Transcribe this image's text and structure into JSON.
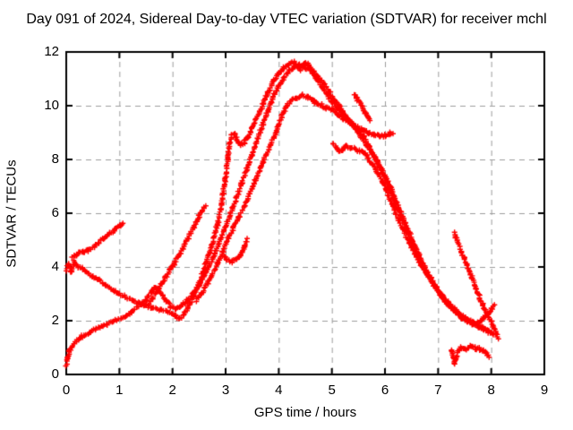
{
  "chart_data": {
    "type": "scatter",
    "title": "Day 091 of 2024, Sidereal Day-to-day VTEC variation (SDTVAR) for receiver mchl",
    "xlabel": "GPS time / hours",
    "ylabel": "SDTVAR / TECUs",
    "xlim": [
      0,
      9
    ],
    "ylim": [
      0,
      12
    ],
    "xticks": [
      0,
      1,
      2,
      3,
      4,
      5,
      6,
      7,
      8,
      9
    ],
    "yticks": [
      0,
      2,
      4,
      6,
      8,
      10,
      12
    ],
    "grid": true,
    "legend_position": "none",
    "marker": "plus",
    "colors": {
      "data": "#ff0000",
      "grid": "#9c9c9c",
      "axis": "#000000",
      "text": "#000000",
      "background": "#ffffff"
    },
    "series": [
      {
        "name": "segment-1",
        "points": [
          [
            0,
            3.9
          ],
          [
            0.04,
            4.15
          ],
          [
            0.09,
            3.8
          ],
          [
            0.15,
            4.2
          ],
          [
            0.22,
            4.0
          ],
          [
            0.3,
            3.95
          ],
          [
            0.38,
            3.8
          ],
          [
            0.5,
            3.65
          ],
          [
            0.62,
            3.5
          ],
          [
            0.75,
            3.3
          ],
          [
            0.88,
            3.15
          ],
          [
            1.0,
            3.0
          ],
          [
            1.12,
            2.88
          ],
          [
            1.28,
            2.72
          ],
          [
            1.45,
            2.6
          ],
          [
            1.62,
            2.48
          ],
          [
            1.8,
            2.4
          ],
          [
            1.95,
            2.3
          ],
          [
            2.05,
            2.18
          ],
          [
            2.12,
            2.08
          ],
          [
            2.2,
            2.18
          ],
          [
            2.3,
            2.5
          ],
          [
            2.4,
            2.92
          ],
          [
            2.5,
            3.4
          ],
          [
            2.6,
            3.95
          ],
          [
            2.7,
            4.55
          ],
          [
            2.78,
            5.05
          ],
          [
            2.86,
            5.7
          ],
          [
            2.93,
            6.4
          ],
          [
            2.99,
            7.2
          ],
          [
            3.04,
            8.0
          ],
          [
            3.08,
            8.6
          ],
          [
            3.12,
            8.88
          ],
          [
            3.17,
            8.95
          ],
          [
            3.22,
            8.7
          ],
          [
            3.28,
            8.55
          ],
          [
            3.35,
            8.62
          ],
          [
            3.42,
            8.85
          ],
          [
            3.5,
            9.15
          ],
          [
            3.6,
            9.6
          ],
          [
            3.7,
            10.05
          ],
          [
            3.8,
            10.5
          ],
          [
            3.9,
            10.9
          ],
          [
            4.0,
            11.2
          ],
          [
            4.1,
            11.42
          ],
          [
            4.2,
            11.55
          ],
          [
            4.3,
            11.62
          ],
          [
            4.4,
            11.35
          ],
          [
            4.5,
            11.6
          ],
          [
            4.57,
            11.5
          ],
          [
            4.65,
            11.28
          ],
          [
            4.75,
            11.02
          ],
          [
            4.85,
            10.82
          ],
          [
            4.95,
            10.52
          ],
          [
            5.05,
            10.22
          ],
          [
            5.15,
            9.95
          ],
          [
            5.25,
            9.65
          ],
          [
            5.35,
            9.4
          ],
          [
            5.45,
            9.15
          ],
          [
            5.55,
            8.85
          ],
          [
            5.65,
            8.55
          ],
          [
            5.75,
            8.25
          ],
          [
            5.85,
            7.95
          ],
          [
            5.95,
            7.6
          ],
          [
            6.05,
            7.2
          ],
          [
            6.15,
            6.75
          ],
          [
            6.25,
            6.25
          ],
          [
            6.35,
            5.78
          ],
          [
            6.45,
            5.3
          ],
          [
            6.55,
            4.85
          ],
          [
            6.65,
            4.42
          ],
          [
            6.75,
            4.0
          ],
          [
            6.85,
            3.62
          ],
          [
            6.95,
            3.28
          ],
          [
            7.05,
            2.95
          ],
          [
            7.15,
            2.7
          ],
          [
            7.25,
            2.48
          ],
          [
            7.35,
            2.28
          ],
          [
            7.45,
            2.1
          ],
          [
            7.55,
            1.98
          ],
          [
            7.65,
            1.88
          ],
          [
            7.75,
            1.78
          ],
          [
            7.85,
            1.68
          ],
          [
            7.95,
            1.58
          ],
          [
            8.05,
            1.45
          ]
        ]
      },
      {
        "name": "segment-2",
        "points": [
          [
            0,
            0.35
          ],
          [
            0.03,
            0.6
          ],
          [
            0.06,
            0.85
          ],
          [
            0.12,
            1.05
          ],
          [
            0.2,
            1.25
          ],
          [
            0.3,
            1.42
          ],
          [
            0.45,
            1.58
          ],
          [
            0.6,
            1.72
          ],
          [
            0.75,
            1.85
          ],
          [
            0.9,
            1.97
          ],
          [
            1.02,
            2.08
          ],
          [
            1.12,
            2.18
          ],
          [
            1.22,
            2.32
          ],
          [
            1.32,
            2.48
          ],
          [
            1.42,
            2.62
          ],
          [
            1.52,
            2.8
          ],
          [
            1.6,
            3.05
          ],
          [
            1.67,
            3.25
          ],
          [
            1.74,
            3.15
          ],
          [
            1.81,
            2.95
          ],
          [
            1.89,
            2.72
          ],
          [
            1.97,
            2.52
          ],
          [
            2.07,
            2.45
          ],
          [
            2.17,
            2.55
          ],
          [
            2.27,
            2.75
          ],
          [
            2.38,
            3.0
          ],
          [
            2.5,
            3.35
          ],
          [
            2.6,
            3.7
          ],
          [
            2.7,
            4.1
          ],
          [
            2.8,
            4.52
          ],
          [
            2.9,
            5.0
          ],
          [
            3.0,
            5.5
          ],
          [
            3.1,
            6.0
          ],
          [
            3.2,
            6.55
          ],
          [
            3.3,
            7.1
          ],
          [
            3.4,
            7.65
          ],
          [
            3.5,
            8.2
          ],
          [
            3.6,
            8.75
          ],
          [
            3.7,
            9.3
          ],
          [
            3.8,
            9.85
          ],
          [
            3.9,
            10.35
          ],
          [
            4.0,
            10.75
          ],
          [
            4.1,
            11.05
          ],
          [
            4.2,
            11.3
          ],
          [
            4.3,
            11.48
          ],
          [
            4.4,
            11.52
          ],
          [
            4.5,
            11.42
          ],
          [
            4.6,
            11.32
          ],
          [
            4.7,
            11.05
          ],
          [
            4.8,
            10.75
          ],
          [
            4.9,
            10.45
          ],
          [
            5.0,
            10.15
          ],
          [
            5.1,
            9.9
          ],
          [
            5.2,
            9.7
          ],
          [
            5.3,
            9.5
          ],
          [
            5.4,
            9.3
          ],
          [
            5.5,
            9.1
          ],
          [
            5.6,
            8.85
          ],
          [
            5.7,
            8.5
          ],
          [
            5.8,
            8.1
          ],
          [
            5.9,
            7.72
          ],
          [
            6.0,
            7.3
          ],
          [
            6.1,
            6.85
          ],
          [
            6.2,
            6.35
          ],
          [
            6.3,
            5.85
          ],
          [
            6.4,
            5.4
          ],
          [
            6.5,
            4.95
          ],
          [
            6.6,
            4.52
          ],
          [
            6.7,
            4.1
          ],
          [
            6.8,
            3.72
          ],
          [
            6.9,
            3.38
          ],
          [
            7.0,
            3.08
          ],
          [
            7.1,
            2.82
          ],
          [
            7.2,
            2.58
          ],
          [
            7.3,
            2.38
          ],
          [
            7.4,
            2.22
          ],
          [
            7.5,
            2.08
          ],
          [
            7.6,
            1.97
          ],
          [
            7.7,
            1.92
          ],
          [
            7.78,
            1.97
          ],
          [
            7.86,
            2.1
          ],
          [
            7.93,
            2.25
          ],
          [
            8.0,
            2.42
          ],
          [
            8.06,
            2.58
          ]
        ]
      },
      {
        "name": "segment-3",
        "points": [
          [
            2.45,
            2.75
          ],
          [
            2.55,
            3.02
          ],
          [
            2.65,
            3.35
          ],
          [
            2.75,
            3.72
          ],
          [
            2.85,
            4.12
          ],
          [
            2.95,
            4.58
          ],
          [
            3.05,
            5.05
          ],
          [
            3.15,
            5.45
          ],
          [
            3.25,
            5.85
          ],
          [
            3.35,
            6.25
          ],
          [
            3.45,
            6.7
          ],
          [
            3.55,
            7.2
          ],
          [
            3.65,
            7.68
          ],
          [
            3.75,
            8.12
          ],
          [
            3.85,
            8.58
          ],
          [
            3.95,
            9.0
          ],
          [
            4.05,
            9.55
          ],
          [
            4.15,
            10.0
          ],
          [
            4.25,
            10.2
          ],
          [
            4.35,
            10.3
          ],
          [
            4.45,
            10.38
          ],
          [
            4.55,
            10.3
          ],
          [
            4.65,
            10.22
          ],
          [
            4.72,
            10.05
          ],
          [
            4.8,
            10.02
          ],
          [
            4.9,
            9.92
          ],
          [
            5.0,
            9.87
          ],
          [
            5.1,
            9.7
          ],
          [
            5.2,
            9.55
          ],
          [
            5.3,
            9.42
          ],
          [
            5.4,
            9.3
          ],
          [
            5.5,
            9.18
          ],
          [
            5.6,
            9.08
          ],
          [
            5.7,
            9.0
          ],
          [
            5.8,
            8.93
          ],
          [
            5.9,
            8.86
          ],
          [
            6.0,
            8.9
          ],
          [
            6.08,
            8.98
          ],
          [
            6.15,
            8.92
          ]
        ]
      },
      {
        "name": "segment-4",
        "points": [
          [
            5.02,
            8.6
          ],
          [
            5.08,
            8.45
          ],
          [
            5.14,
            8.32
          ],
          [
            5.2,
            8.35
          ],
          [
            5.28,
            8.48
          ],
          [
            5.36,
            8.44
          ],
          [
            5.46,
            8.36
          ],
          [
            5.56,
            8.3
          ],
          [
            5.66,
            8.12
          ],
          [
            5.76,
            7.85
          ],
          [
            5.86,
            7.5
          ],
          [
            5.96,
            7.12
          ],
          [
            6.06,
            6.68
          ],
          [
            6.16,
            6.22
          ],
          [
            6.26,
            5.76
          ],
          [
            6.36,
            5.32
          ],
          [
            6.46,
            4.9
          ],
          [
            6.56,
            4.52
          ],
          [
            6.66,
            4.16
          ],
          [
            6.76,
            3.82
          ],
          [
            6.86,
            3.52
          ],
          [
            6.96,
            3.22
          ],
          [
            7.06,
            2.96
          ],
          [
            7.16,
            2.72
          ],
          [
            7.26,
            2.52
          ],
          [
            7.36,
            2.32
          ],
          [
            7.46,
            2.16
          ],
          [
            7.56,
            2.02
          ],
          [
            7.66,
            1.92
          ],
          [
            7.76,
            1.82
          ],
          [
            7.86,
            1.72
          ],
          [
            7.96,
            1.62
          ]
        ]
      },
      {
        "name": "segment-5",
        "points": [
          [
            5.42,
            10.45
          ],
          [
            5.47,
            10.28
          ],
          [
            5.52,
            10.12
          ],
          [
            5.57,
            9.95
          ],
          [
            5.62,
            9.78
          ],
          [
            5.67,
            9.6
          ],
          [
            5.72,
            9.42
          ]
        ]
      },
      {
        "name": "segment-6",
        "points": [
          [
            7.3,
            5.25
          ],
          [
            7.34,
            5.05
          ],
          [
            7.39,
            4.82
          ],
          [
            7.44,
            4.58
          ],
          [
            7.49,
            4.32
          ],
          [
            7.54,
            4.08
          ],
          [
            7.59,
            3.84
          ],
          [
            7.64,
            3.58
          ],
          [
            7.69,
            3.32
          ],
          [
            7.74,
            3.08
          ],
          [
            7.79,
            2.84
          ],
          [
            7.84,
            2.6
          ],
          [
            7.89,
            2.4
          ],
          [
            7.94,
            2.2
          ],
          [
            7.99,
            2.0
          ],
          [
            8.04,
            1.78
          ],
          [
            8.09,
            1.55
          ],
          [
            8.13,
            1.35
          ]
        ]
      },
      {
        "name": "segment-7",
        "points": [
          [
            7.25,
            0.95
          ],
          [
            7.28,
            0.65
          ],
          [
            7.31,
            0.4
          ],
          [
            7.34,
            0.6
          ],
          [
            7.38,
            0.85
          ],
          [
            7.43,
            1.0
          ],
          [
            7.5,
            0.92
          ],
          [
            7.57,
            1.02
          ],
          [
            7.64,
            1.06
          ],
          [
            7.71,
            0.96
          ],
          [
            7.79,
            0.95
          ],
          [
            7.86,
            0.88
          ],
          [
            7.92,
            0.78
          ],
          [
            7.97,
            0.68
          ]
        ]
      },
      {
        "name": "segment-8",
        "points": [
          [
            0.12,
            4.35
          ],
          [
            0.22,
            4.5
          ],
          [
            0.32,
            4.56
          ],
          [
            0.42,
            4.62
          ],
          [
            0.52,
            4.76
          ],
          [
            0.62,
            4.92
          ],
          [
            0.72,
            5.1
          ],
          [
            0.82,
            5.26
          ],
          [
            0.92,
            5.4
          ],
          [
            1.0,
            5.52
          ],
          [
            1.06,
            5.65
          ]
        ]
      },
      {
        "name": "segment-9",
        "points": [
          [
            1.55,
            2.6
          ],
          [
            1.63,
            2.85
          ],
          [
            1.71,
            3.1
          ],
          [
            1.79,
            3.35
          ],
          [
            1.87,
            3.62
          ],
          [
            1.95,
            3.88
          ],
          [
            2.03,
            4.12
          ],
          [
            2.11,
            4.38
          ],
          [
            2.2,
            4.7
          ],
          [
            2.3,
            5.08
          ],
          [
            2.4,
            5.48
          ],
          [
            2.5,
            5.88
          ],
          [
            2.57,
            6.14
          ],
          [
            2.62,
            6.3
          ]
        ]
      },
      {
        "name": "segment-10",
        "points": [
          [
            2.95,
            4.4
          ],
          [
            3.03,
            4.27
          ],
          [
            3.12,
            4.2
          ],
          [
            3.21,
            4.28
          ],
          [
            3.29,
            4.45
          ],
          [
            3.35,
            4.72
          ],
          [
            3.4,
            5.02
          ]
        ]
      }
    ]
  }
}
